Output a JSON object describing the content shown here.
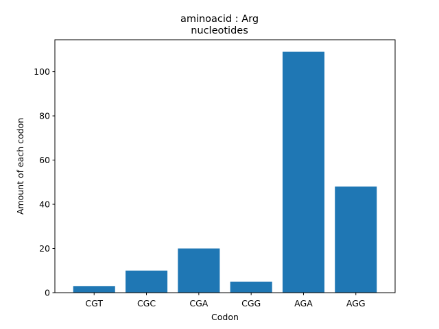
{
  "chart_data": {
    "type": "bar",
    "title_line1": "aminoacid : Arg",
    "title_line2": "nucleotides",
    "xlabel": "Codon",
    "ylabel": "Amount of each codon",
    "categories": [
      "CGT",
      "CGC",
      "CGA",
      "CGG",
      "AGA",
      "AGG"
    ],
    "values": [
      3,
      10,
      20,
      5,
      109,
      48
    ],
    "ylim": [
      0,
      114.45
    ],
    "yticks": [
      0,
      20,
      40,
      60,
      80,
      100
    ],
    "bar_color": "#1f77b4",
    "grid": false,
    "legend": "none"
  }
}
